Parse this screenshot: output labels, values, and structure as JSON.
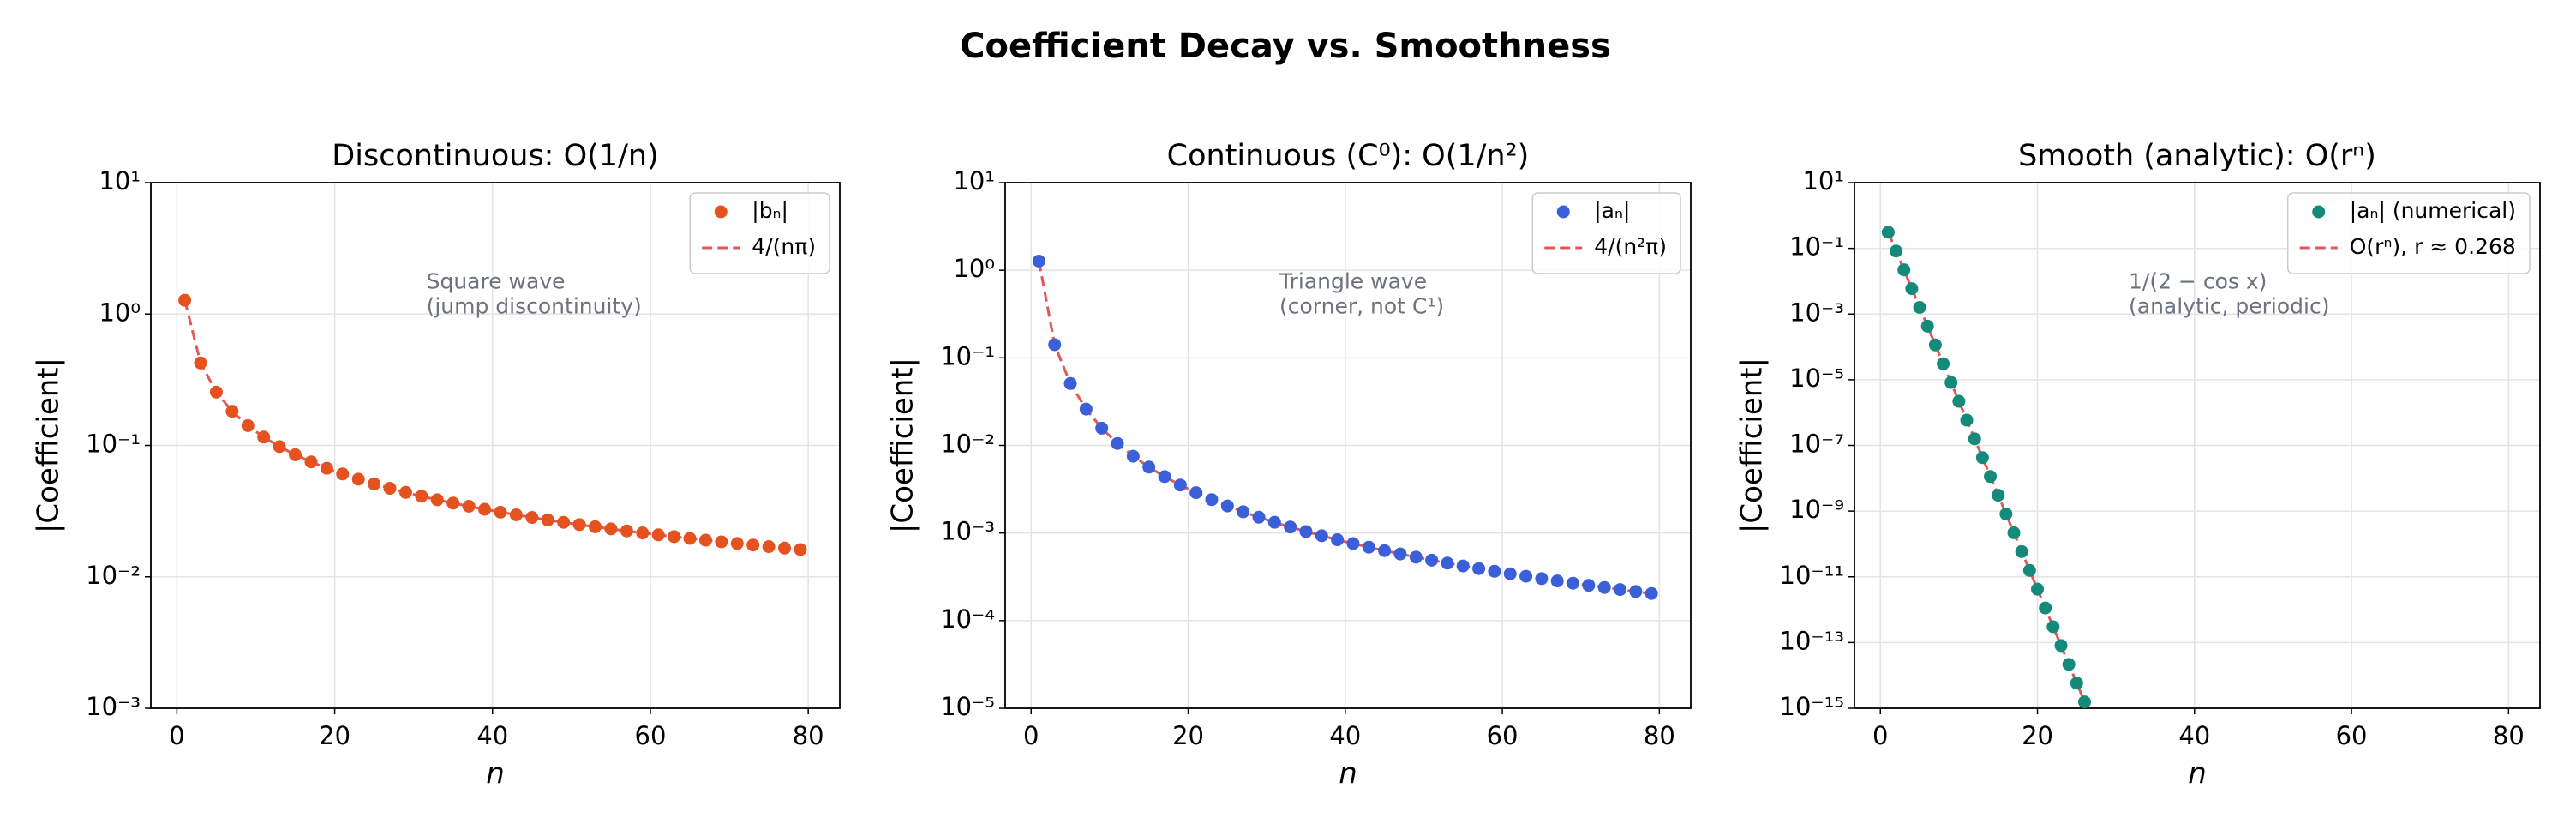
{
  "title": "Coefficient Decay vs. Smoothness",
  "chart_data": [
    {
      "type": "scatter",
      "title": "Discontinuous: O(1/n)",
      "x_label": "n",
      "y_label": "|Coefficient|",
      "annotation": [
        "Square wave",
        "(jump discontinuity)"
      ],
      "log_y": true,
      "grid": true,
      "legend": "upper right",
      "xlim": [
        -3.3,
        84
      ],
      "xticks": [
        0,
        20,
        40,
        60,
        80
      ],
      "ylim": [
        0.001,
        10
      ],
      "yticks": [
        {
          "value": 0.001,
          "label": "10⁻³"
        },
        {
          "value": 0.01,
          "label": "10⁻²"
        },
        {
          "value": 0.1,
          "label": "10⁻¹"
        },
        {
          "value": 1,
          "label": "10⁰"
        },
        {
          "value": 10,
          "label": "10¹"
        }
      ],
      "x": [
        1,
        3,
        5,
        7,
        9,
        11,
        13,
        15,
        17,
        19,
        21,
        23,
        25,
        27,
        29,
        31,
        33,
        35,
        37,
        39,
        41,
        43,
        45,
        47,
        49,
        51,
        53,
        55,
        57,
        59,
        61,
        63,
        65,
        67,
        69,
        71,
        73,
        75,
        77,
        79
      ],
      "series": [
        {
          "name": "|bₙ|",
          "color": "#e4531f",
          "style": "markers",
          "values": [
            1.2732,
            0.42441,
            0.25465,
            0.18189,
            0.14147,
            0.11575,
            0.097942,
            0.084883,
            0.074896,
            0.067013,
            0.06063,
            0.055358,
            0.05093,
            0.047157,
            0.043905,
            0.041072,
            0.038583,
            0.036378,
            0.034412,
            0.032647,
            0.031055,
            0.02961,
            0.028294,
            0.02709,
            0.025985,
            0.024966,
            0.024023,
            0.02315,
            0.022338,
            0.02158,
            0.020873,
            0.02021,
            0.019588,
            0.019004,
            0.018453,
            0.017933,
            0.017442,
            0.016977,
            0.016536,
            0.016117
          ]
        },
        {
          "name": "4/(nπ)",
          "color": "#e35757",
          "style": "dashed",
          "values": [
            1.2732,
            0.42441,
            0.25465,
            0.18189,
            0.14147,
            0.11575,
            0.097942,
            0.084883,
            0.074896,
            0.067013,
            0.06063,
            0.055358,
            0.05093,
            0.047157,
            0.043905,
            0.041072,
            0.038583,
            0.036378,
            0.034412,
            0.032647,
            0.031055,
            0.02961,
            0.028294,
            0.02709,
            0.025985,
            0.024966,
            0.024023,
            0.02315,
            0.022338,
            0.02158,
            0.020873,
            0.02021,
            0.019588,
            0.019004,
            0.018453,
            0.017933,
            0.017442,
            0.016977,
            0.016536,
            0.016117
          ]
        }
      ]
    },
    {
      "type": "scatter",
      "title": "Continuous (C⁰): O(1/n²)",
      "x_label": "n",
      "y_label": "|Coefficient|",
      "annotation": [
        "Triangle wave",
        "(corner, not C¹)"
      ],
      "log_y": true,
      "grid": true,
      "legend": "upper right",
      "xlim": [
        -3.3,
        84
      ],
      "xticks": [
        0,
        20,
        40,
        60,
        80
      ],
      "ylim": [
        1e-05,
        10
      ],
      "yticks": [
        {
          "value": 1e-05,
          "label": "10⁻⁵"
        },
        {
          "value": 0.0001,
          "label": "10⁻⁴"
        },
        {
          "value": 0.001,
          "label": "10⁻³"
        },
        {
          "value": 0.01,
          "label": "10⁻²"
        },
        {
          "value": 0.1,
          "label": "10⁻¹"
        },
        {
          "value": 1,
          "label": "10⁰"
        },
        {
          "value": 10,
          "label": "10¹"
        }
      ],
      "x": [
        1,
        3,
        5,
        7,
        9,
        11,
        13,
        15,
        17,
        19,
        21,
        23,
        25,
        27,
        29,
        31,
        33,
        35,
        37,
        39,
        41,
        43,
        45,
        47,
        49,
        51,
        53,
        55,
        57,
        59,
        61,
        63,
        65,
        67,
        69,
        71,
        73,
        75,
        77,
        79
      ],
      "series": [
        {
          "name": "|aₙ|",
          "color": "#3a5fd9",
          "style": "markers",
          "values": [
            1.2732,
            0.14147,
            0.05093,
            0.025985,
            0.015719,
            0.010523,
            0.007534,
            0.005659,
            0.004406,
            0.003527,
            0.002887,
            0.002407,
            0.002037,
            0.001747,
            0.001514,
            0.001325,
            0.001169,
            0.001039,
            0.0009301,
            0.0008371,
            0.0007574,
            0.0006886,
            0.0006288,
            0.0005764,
            0.0005303,
            0.0004895,
            0.0004533,
            0.0004209,
            0.0003919,
            0.0003658,
            0.0003422,
            0.0003208,
            0.0003014,
            0.0002836,
            0.0002674,
            0.0002526,
            0.0002389,
            0.0002264,
            0.0002147,
            0.000204
          ]
        },
        {
          "name": "4/(n²π)",
          "color": "#e35757",
          "style": "dashed",
          "values": [
            1.2732,
            0.14147,
            0.05093,
            0.025985,
            0.015719,
            0.010523,
            0.007534,
            0.005659,
            0.004406,
            0.003527,
            0.002887,
            0.002407,
            0.002037,
            0.001747,
            0.001514,
            0.001325,
            0.001169,
            0.001039,
            0.0009301,
            0.0008371,
            0.0007574,
            0.0006886,
            0.0006288,
            0.0005764,
            0.0005303,
            0.0004895,
            0.0004533,
            0.0004209,
            0.0003919,
            0.0003658,
            0.0003422,
            0.0003208,
            0.0003014,
            0.0002836,
            0.0002674,
            0.0002526,
            0.0002389,
            0.0002264,
            0.0002147,
            0.000204
          ]
        }
      ]
    },
    {
      "type": "scatter",
      "title": "Smooth (analytic): O(rⁿ)",
      "x_label": "n",
      "y_label": "|Coefficient|",
      "annotation": [
        "1/(2 − cos x)",
        "(analytic, periodic)"
      ],
      "log_y": true,
      "grid": true,
      "legend": "upper right",
      "xlim": [
        -3.3,
        84
      ],
      "xticks": [
        0,
        20,
        40,
        60,
        80
      ],
      "ylim": [
        1e-15,
        10
      ],
      "yticks": [
        {
          "value": 1e-15,
          "label": "10⁻¹⁵"
        },
        {
          "value": 1e-13,
          "label": "10⁻¹³"
        },
        {
          "value": 1e-11,
          "label": "10⁻¹¹"
        },
        {
          "value": 1e-09,
          "label": "10⁻⁹"
        },
        {
          "value": 1e-07,
          "label": "10⁻⁷"
        },
        {
          "value": 1e-05,
          "label": "10⁻⁵"
        },
        {
          "value": 0.001,
          "label": "10⁻³"
        },
        {
          "value": 0.1,
          "label": "10⁻¹"
        },
        {
          "value": 10,
          "label": "10¹"
        }
      ],
      "x": [
        1,
        2,
        3,
        4,
        5,
        6,
        7,
        8,
        9,
        10,
        11,
        12,
        13,
        14,
        15,
        16,
        17,
        18,
        19,
        20,
        21,
        22,
        23,
        24,
        25,
        26
      ],
      "series": [
        {
          "name": "|aₙ| (numerical)",
          "color": "#138a7a",
          "style": "markers",
          "values": [
            0.3094,
            0.082904,
            0.022214,
            0.0059523,
            0.0015949,
            0.00042736,
            0.00011451,
            3.0683e-05,
            8.2215e-06,
            2.203e-06,
            5.9028e-07,
            1.5817e-07,
            4.2381e-08,
            1.1356e-08,
            3.0428e-09,
            8.1532e-10,
            2.1846e-10,
            5.8537e-11,
            1.5685e-11,
            4.2028e-12,
            1.1261e-12,
            3.0175e-13,
            8.0853e-14,
            2.1665e-14,
            5.805e-15,
            1.5555e-15
          ]
        },
        {
          "name": "O(rⁿ), r ≈ 0.268",
          "color": "#e35757",
          "style": "dashed",
          "values": [
            0.3094,
            0.082904,
            0.022214,
            0.0059523,
            0.0015949,
            0.00042736,
            0.00011451,
            3.0683e-05,
            8.2215e-06,
            2.203e-06,
            5.9028e-07,
            1.5817e-07,
            4.2381e-08,
            1.1356e-08,
            3.0428e-09,
            8.1532e-10,
            2.1846e-10,
            5.8537e-11,
            1.5685e-11,
            4.2028e-12,
            1.1261e-12,
            3.0175e-13,
            8.0853e-14,
            2.1665e-14,
            5.805e-15,
            1.5555e-15
          ]
        }
      ]
    }
  ]
}
